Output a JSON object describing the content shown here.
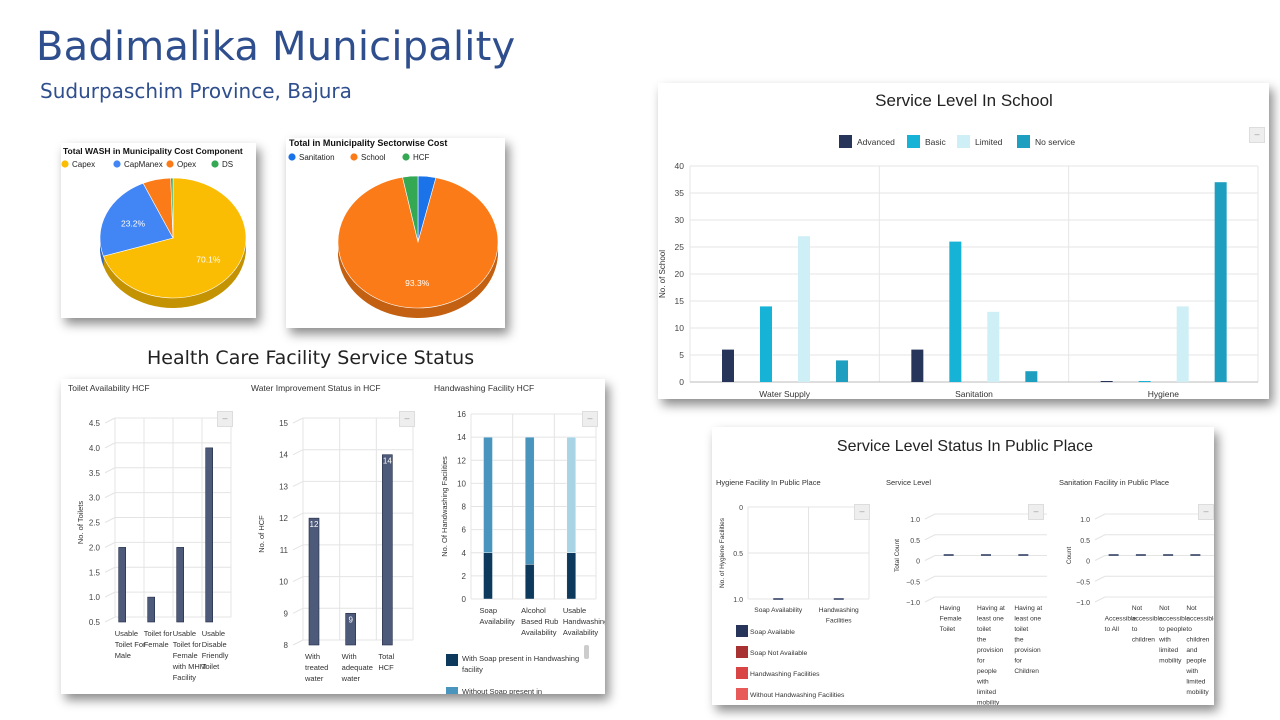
{
  "page": {
    "title": "Badimalika Municipality",
    "subtitle": "Sudurpaschim Province, Bajura",
    "hcf_heading": "Health Care Facility Service Status",
    "public_heading": "Service Level Status In Public Place"
  },
  "chart_data": [
    {
      "id": "wash_cost_component",
      "type": "pie",
      "title": "Total WASH in Municipality Cost Component",
      "legend": [
        "Capex",
        "CapManex",
        "Opex",
        "DS"
      ],
      "colors": [
        "#fbbc04",
        "#4285f4",
        "#fa7b17",
        "#34a853"
      ],
      "values": [
        70.1,
        23.2,
        6.2,
        0.5
      ],
      "data_labels": [
        "70.1%",
        "23.2%",
        "",
        ""
      ],
      "legend_position": "top-left"
    },
    {
      "id": "sectorwise_cost",
      "type": "pie",
      "title": "Total in Municipality Sectorwise Cost",
      "legend": [
        "Sanitation",
        "School",
        "HCF"
      ],
      "colors": [
        "#1a73e8",
        "#fa7b17",
        "#34a853"
      ],
      "values": [
        3.6,
        93.3,
        3.1
      ],
      "data_labels": [
        "",
        "93.3%",
        ""
      ],
      "legend_position": "top-left"
    },
    {
      "id": "service_level_school",
      "type": "bar",
      "title": "Service Level In School",
      "categories": [
        "Water Supply",
        "Sanitation",
        "Hygiene"
      ],
      "series": [
        {
          "name": "Advanced",
          "color": "#27355a",
          "values": [
            6,
            6,
            0
          ]
        },
        {
          "name": "Basic",
          "color": "#16b3d6",
          "values": [
            14,
            26,
            0
          ]
        },
        {
          "name": "Limited",
          "color": "#cfeff7",
          "values": [
            27,
            13,
            14
          ]
        },
        {
          "name": "No service",
          "color": "#1f9fbf",
          "values": [
            4,
            2,
            37
          ]
        }
      ],
      "ylabel": "No. of School",
      "ylim": [
        0,
        40
      ],
      "yticks": [
        0,
        5,
        10,
        15,
        20,
        25,
        30,
        35,
        40
      ],
      "legend_position": "top"
    },
    {
      "id": "toilet_availability_hcf",
      "type": "bar",
      "title": "Toilet Availability HCF",
      "categories": [
        "Usable Toilet For Male",
        "Toilet for Female",
        "Usable Toilet for Female with MHM Facility",
        "Usable Disable Friendly Toilet"
      ],
      "values": [
        2,
        1,
        2,
        4
      ],
      "ylabel": "No. of Toilets",
      "ylim": [
        0.5,
        4.5
      ],
      "yticks": [
        "0.5",
        "1.0",
        "1.5",
        "2.0",
        "2.5",
        "3.0",
        "3.5",
        "4.0",
        "4.5"
      ]
    },
    {
      "id": "water_improvement_hcf",
      "type": "bar",
      "title": "Water Improvement Status in HCF",
      "categories": [
        "With treated water",
        "With adequate water",
        "Total HCF"
      ],
      "values": [
        12,
        9,
        14
      ],
      "data_labels": [
        "12",
        "9",
        "14"
      ],
      "ylabel": "No. of HCF",
      "ylim": [
        8,
        15
      ],
      "yticks": [
        "8",
        "9",
        "10",
        "11",
        "12",
        "13",
        "14",
        "15"
      ]
    },
    {
      "id": "handwashing_hcf",
      "type": "bar",
      "title": "Handwashing Facility HCF",
      "categories": [
        "Soap Availability",
        "Alcohol Based Rub Availability",
        "Usable Handwashing Availability"
      ],
      "series": [
        {
          "name": "With Soap present in Handwashing facility",
          "color": "#0d3a5c",
          "values": [
            4,
            3,
            4
          ]
        },
        {
          "name": "Without Soap present in",
          "color": "#4a95be",
          "values": [
            10,
            11,
            0
          ]
        },
        {
          "name": "",
          "color": "#a8d4e6",
          "values": [
            0,
            0,
            10
          ]
        }
      ],
      "ylabel": "No. Of Handwashing Facilities",
      "ylim": [
        0,
        16
      ],
      "yticks": [
        "0",
        "2",
        "4",
        "6",
        "8",
        "10",
        "12",
        "14",
        "16"
      ]
    },
    {
      "id": "hygiene_public_place",
      "type": "bar",
      "title": "Hygiene Facility In Public Place",
      "categories": [
        "Soap Availability",
        "Handwashing Facilities"
      ],
      "series": [
        {
          "name": "Soap Available",
          "color": "#27355a",
          "values": [
            0,
            0
          ]
        },
        {
          "name": "Soap Not Available",
          "color": "#a83232",
          "values": [
            0,
            0
          ]
        },
        {
          "name": "Handwashing Facilities",
          "color": "#d94545",
          "values": [
            0,
            0
          ]
        },
        {
          "name": "Without Handwashing Facilities",
          "color": "#e85a5a",
          "values": [
            0,
            0
          ]
        }
      ],
      "ylabel": "No. of Hygiene Facilities",
      "ylim": [
        0,
        1.0
      ],
      "yticks": [
        "0",
        "0.5",
        "1.0"
      ]
    },
    {
      "id": "service_level_public",
      "type": "bar",
      "title": "Service Level",
      "categories": [
        "Having Female Toilet",
        "Having at least one toilet the provision for people with limited mobility",
        "Having at least one toilet the provision for Children"
      ],
      "values": [
        0,
        0,
        0
      ],
      "ylabel": "Total Count",
      "ylim": [
        -1.0,
        1.0
      ],
      "yticks": [
        "1.0",
        "0.5",
        "0",
        "−0.5",
        "−1.0"
      ]
    },
    {
      "id": "sanitation_public_place",
      "type": "bar",
      "title": "Sanitation Facility in Public Place",
      "categories": [
        "Accessible to All",
        "Not accessible to children",
        "Not accessible to people with limited mobility",
        "Not accessible to children and people with limited mobility"
      ],
      "values": [
        0,
        0,
        0,
        0
      ],
      "ylabel": "Count",
      "ylim": [
        -1.0,
        1.0
      ],
      "yticks": [
        "1.0",
        "0.5",
        "0",
        "−0.5",
        "−1.0"
      ]
    }
  ]
}
